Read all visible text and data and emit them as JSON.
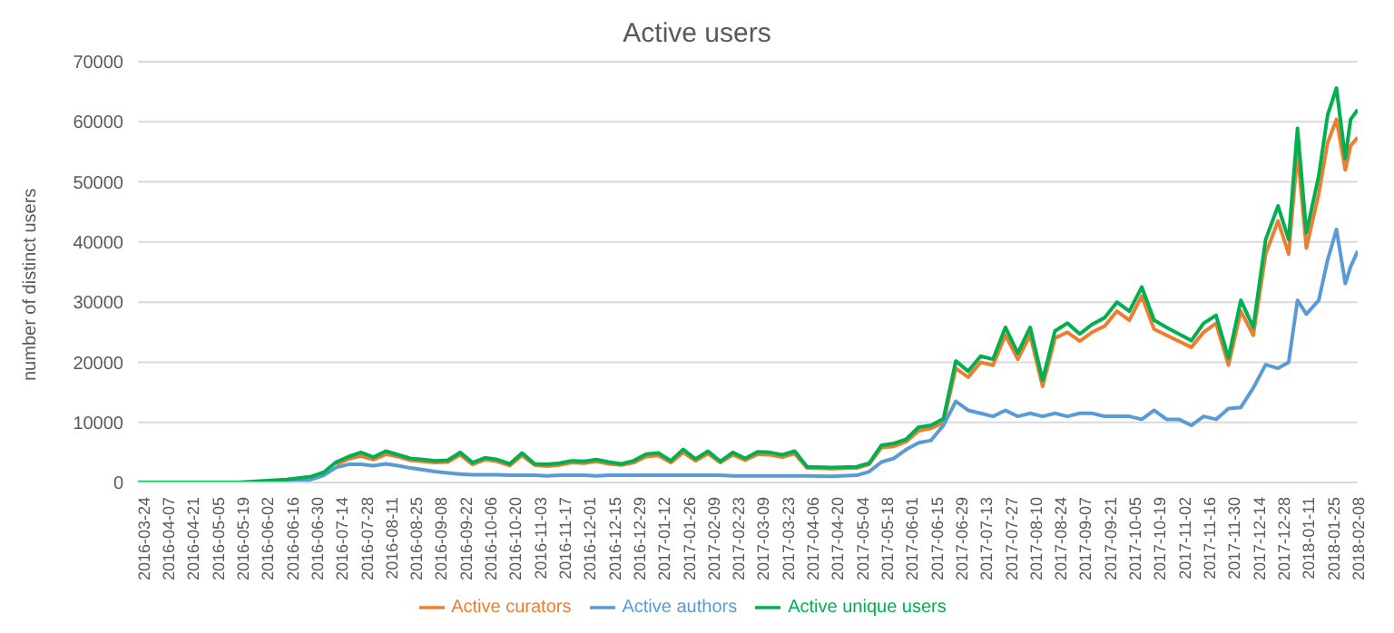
{
  "chart_data": {
    "type": "line",
    "title": "Active users",
    "ylabel": "number of distinct users",
    "x": [
      "2016-03-24",
      "2016-04-21",
      "2016-05-19",
      "2016-06-16",
      "2016-06-30",
      "2016-07-07",
      "2016-07-14",
      "2016-07-21",
      "2016-07-28",
      "2016-08-04",
      "2016-08-11",
      "2016-08-18",
      "2016-08-25",
      "2016-09-01",
      "2016-09-08",
      "2016-09-15",
      "2016-09-22",
      "2016-09-29",
      "2016-10-06",
      "2016-10-13",
      "2016-10-20",
      "2016-10-27",
      "2016-11-03",
      "2016-11-10",
      "2016-11-17",
      "2016-11-24",
      "2016-12-01",
      "2016-12-08",
      "2016-12-15",
      "2016-12-22",
      "2016-12-29",
      "2017-01-05",
      "2017-01-12",
      "2017-01-19",
      "2017-01-26",
      "2017-02-02",
      "2017-02-09",
      "2017-02-16",
      "2017-02-23",
      "2017-03-02",
      "2017-03-09",
      "2017-03-16",
      "2017-03-23",
      "2017-03-30",
      "2017-04-06",
      "2017-04-20",
      "2017-05-04",
      "2017-05-11",
      "2017-05-18",
      "2017-05-25",
      "2017-06-01",
      "2017-06-08",
      "2017-06-15",
      "2017-06-22",
      "2017-06-29",
      "2017-07-06",
      "2017-07-13",
      "2017-07-20",
      "2017-07-27",
      "2017-08-03",
      "2017-08-10",
      "2017-08-17",
      "2017-08-24",
      "2017-08-31",
      "2017-09-07",
      "2017-09-14",
      "2017-09-21",
      "2017-09-28",
      "2017-10-05",
      "2017-10-12",
      "2017-10-19",
      "2017-10-26",
      "2017-11-02",
      "2017-11-09",
      "2017-11-16",
      "2017-11-23",
      "2017-11-30",
      "2017-12-07",
      "2017-12-14",
      "2017-12-21",
      "2017-12-28",
      "2018-01-03",
      "2018-01-08",
      "2018-01-13",
      "2018-01-20",
      "2018-01-25",
      "2018-01-30",
      "2018-02-04",
      "2018-02-07",
      "2018-02-11"
    ],
    "series": [
      {
        "name": "Active curators",
        "color": "#ed7d31",
        "values": [
          null,
          null,
          null,
          null,
          null,
          null,
          3000,
          3900,
          4400,
          3800,
          4700,
          4300,
          3700,
          3500,
          3300,
          3400,
          4600,
          3000,
          3800,
          3500,
          2800,
          4500,
          2900,
          2700,
          2900,
          3300,
          3200,
          3500,
          3100,
          2900,
          3300,
          4300,
          4500,
          3300,
          5000,
          3600,
          4800,
          3300,
          4600,
          3700,
          4700,
          4600,
          4200,
          4800,
          2400,
          2300,
          2400,
          3000,
          5800,
          6000,
          6800,
          8600,
          9000,
          10000,
          19000,
          17500,
          20000,
          19500,
          24500,
          20500,
          24500,
          16000,
          24000,
          25000,
          23500,
          25000,
          26000,
          28500,
          27000,
          31000,
          25500,
          24500,
          23500,
          22500,
          25000,
          26500,
          19500,
          28500,
          24500,
          38000,
          43500,
          38000,
          55000,
          39000,
          48000,
          56500,
          60400,
          52000,
          56000,
          57400
        ]
      },
      {
        "name": "Active authors",
        "color": "#5b9bd5",
        "values": [
          null,
          null,
          0,
          0,
          500,
          1200,
          2500,
          3000,
          3000,
          2800,
          3100,
          2800,
          2400,
          2100,
          1800,
          1600,
          1400,
          1300,
          1300,
          1300,
          1200,
          1200,
          1200,
          1100,
          1200,
          1200,
          1200,
          1100,
          1200,
          1200,
          1200,
          1200,
          1200,
          1200,
          1200,
          1200,
          1200,
          1200,
          1100,
          1100,
          1100,
          1100,
          1100,
          1100,
          1100,
          1000,
          1200,
          1800,
          3400,
          4000,
          5500,
          6600,
          7000,
          9500,
          13500,
          12000,
          11500,
          11000,
          12000,
          11000,
          11500,
          11000,
          11500,
          11000,
          11500,
          11500,
          11000,
          11000,
          11000,
          10500,
          12000,
          10500,
          10500,
          9500,
          11000,
          10500,
          12300,
          12500,
          15700,
          19600,
          19000,
          20000,
          30300,
          28000,
          30300,
          37000,
          42100,
          33100,
          35900,
          38500
        ]
      },
      {
        "name": "Active unique users",
        "color": "#00b050",
        "values": [
          0,
          0,
          0,
          500,
          1000,
          1700,
          3400,
          4300,
          5000,
          4200,
          5200,
          4600,
          4000,
          3800,
          3600,
          3700,
          5000,
          3300,
          4100,
          3800,
          3100,
          4900,
          3100,
          3000,
          3200,
          3600,
          3500,
          3800,
          3400,
          3100,
          3600,
          4700,
          4900,
          3600,
          5500,
          3900,
          5200,
          3500,
          5000,
          4000,
          5100,
          5000,
          4600,
          5200,
          2600,
          2500,
          2600,
          3200,
          6200,
          6500,
          7200,
          9200,
          9500,
          10600,
          20200,
          18500,
          21000,
          20500,
          25800,
          21500,
          25800,
          17000,
          25200,
          26500,
          24700,
          26300,
          27400,
          30000,
          28500,
          32500,
          27000,
          25800,
          24700,
          23600,
          26500,
          27800,
          20700,
          30300,
          25800,
          40400,
          46000,
          40400,
          58900,
          41500,
          51000,
          61100,
          65600,
          53900,
          60400,
          62000
        ]
      }
    ],
    "xlim": [
      "2016-03-24",
      "2018-02-11"
    ],
    "xticks": [
      "2016-03-24",
      "2016-04-07",
      "2016-04-21",
      "2016-05-05",
      "2016-05-19",
      "2016-06-02",
      "2016-06-16",
      "2016-06-30",
      "2016-07-14",
      "2016-07-28",
      "2016-08-11",
      "2016-08-25",
      "2016-09-08",
      "2016-09-22",
      "2016-10-06",
      "2016-10-20",
      "2016-11-03",
      "2016-11-17",
      "2016-12-01",
      "2016-12-15",
      "2016-12-29",
      "2017-01-12",
      "2017-01-26",
      "2017-02-09",
      "2017-02-23",
      "2017-03-09",
      "2017-03-23",
      "2017-04-06",
      "2017-04-20",
      "2017-05-04",
      "2017-05-18",
      "2017-06-01",
      "2017-06-15",
      "2017-06-29",
      "2017-07-13",
      "2017-07-27",
      "2017-08-10",
      "2017-08-24",
      "2017-09-07",
      "2017-09-21",
      "2017-10-05",
      "2017-10-19",
      "2017-11-02",
      "2017-11-16",
      "2017-11-30",
      "2017-12-14",
      "2017-12-28",
      "2018-01-11",
      "2018-01-25",
      "2018-02-08"
    ],
    "ylim": [
      0,
      70000
    ],
    "yticks": [
      0,
      10000,
      20000,
      30000,
      40000,
      50000,
      60000,
      70000
    ],
    "grid": "y",
    "legend": "bottom",
    "marker": "none",
    "line_style": "solid"
  }
}
